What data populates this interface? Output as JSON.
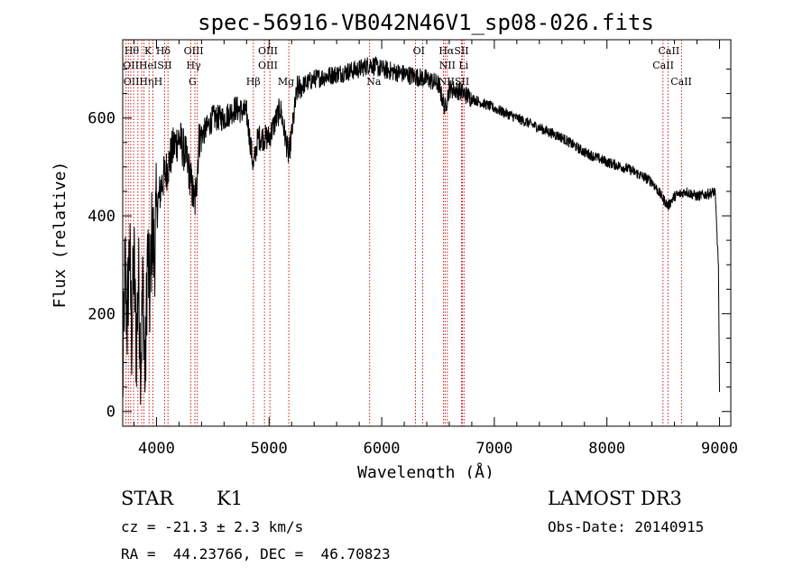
{
  "chart_data": {
    "type": "line",
    "title": "spec-56916-VB042N46V1_sp08-026.fits",
    "xlabel": "Wavelength (Å)",
    "ylabel": "Flux (relative)",
    "xlim": [
      3700,
      9100
    ],
    "ylim": [
      -30,
      760
    ],
    "xticks": [
      4000,
      5000,
      6000,
      7000,
      8000,
      9000
    ],
    "yticks": [
      0,
      200,
      400,
      600
    ],
    "series": [
      {
        "name": "flux",
        "x": [
          3700,
          3720,
          3740,
          3760,
          3780,
          3800,
          3820,
          3840,
          3860,
          3880,
          3900,
          3920,
          3940,
          3960,
          3980,
          4000,
          4050,
          4100,
          4150,
          4200,
          4250,
          4300,
          4340,
          4380,
          4450,
          4500,
          4600,
          4700,
          4800,
          4861,
          4900,
          5000,
          5100,
          5175,
          5250,
          5400,
          5600,
          5800,
          5900,
          6000,
          6100,
          6200,
          6300,
          6400,
          6500,
          6563,
          6600,
          6700,
          6800,
          6900,
          7000,
          7200,
          7400,
          7600,
          7800,
          8000,
          8200,
          8400,
          8542,
          8600,
          8700,
          8800,
          8900,
          8960,
          8990,
          9000
        ],
        "y": [
          40,
          300,
          180,
          340,
          150,
          320,
          120,
          280,
          100,
          260,
          60,
          330,
          230,
          370,
          320,
          410,
          470,
          500,
          540,
          560,
          530,
          480,
          420,
          560,
          580,
          600,
          600,
          620,
          610,
          500,
          560,
          560,
          620,
          520,
          660,
          680,
          690,
          700,
          710,
          700,
          695,
          690,
          685,
          680,
          670,
          620,
          660,
          655,
          640,
          630,
          620,
          600,
          580,
          560,
          530,
          510,
          495,
          470,
          420,
          440,
          450,
          440,
          445,
          450,
          300,
          40
        ]
      }
    ],
    "lines": [
      {
        "wavelength": 3730,
        "label": "OII"
      },
      {
        "wavelength": 3750,
        "label": "OII"
      },
      {
        "wavelength": 3771,
        "label": "Hθ"
      },
      {
        "wavelength": 3797,
        "label": "Hθ"
      },
      {
        "wavelength": 3835,
        "label": "Hη"
      },
      {
        "wavelength": 3869,
        "label": "NeIII"
      },
      {
        "wavelength": 3889,
        "label": "HeI"
      },
      {
        "wavelength": 3934,
        "label": "K"
      },
      {
        "wavelength": 3969,
        "label": "H"
      },
      {
        "wavelength": 4072,
        "label": "SII"
      },
      {
        "wavelength": 4102,
        "label": "Hδ"
      },
      {
        "wavelength": 4304,
        "label": "G"
      },
      {
        "wavelength": 4341,
        "label": "Hγ"
      },
      {
        "wavelength": 4363,
        "label": "OIII"
      },
      {
        "wavelength": 4861,
        "label": "Hβ"
      },
      {
        "wavelength": 4959,
        "label": "OIII"
      },
      {
        "wavelength": 5007,
        "label": "OIII"
      },
      {
        "wavelength": 5175,
        "label": "Mg"
      },
      {
        "wavelength": 5893,
        "label": "Na"
      },
      {
        "wavelength": 6300,
        "label": "OI"
      },
      {
        "wavelength": 6364,
        "label": "OI"
      },
      {
        "wavelength": 6548,
        "label": "NII"
      },
      {
        "wavelength": 6563,
        "label": "Hα"
      },
      {
        "wavelength": 6583,
        "label": "NII"
      },
      {
        "wavelength": 6708,
        "label": "Li"
      },
      {
        "wavelength": 6717,
        "label": "SII"
      },
      {
        "wavelength": 6731,
        "label": "SII"
      },
      {
        "wavelength": 8498,
        "label": "CaII"
      },
      {
        "wavelength": 8542,
        "label": "CaII"
      },
      {
        "wavelength": 8662,
        "label": "CaII"
      }
    ],
    "line_labels": [
      {
        "text": "Hθ",
        "row": 1,
        "wavelength": 3780
      },
      {
        "text": "K",
        "row": 1,
        "wavelength": 3925
      },
      {
        "text": "Hδ",
        "row": 1,
        "wavelength": 4060
      },
      {
        "text": "OIII",
        "row": 1,
        "wavelength": 4330
      },
      {
        "text": "OIII",
        "row": 1,
        "wavelength": 4990
      },
      {
        "text": "OI",
        "row": 1,
        "wavelength": 6330
      },
      {
        "text": "HαSII",
        "row": 1,
        "wavelength": 6640
      },
      {
        "text": "CaII",
        "row": 1,
        "wavelength": 8550
      },
      {
        "text": "OIIHeISII",
        "row": 2,
        "wavelength": 3920
      },
      {
        "text": "Hγ",
        "row": 2,
        "wavelength": 4330
      },
      {
        "text": "OIII",
        "row": 2,
        "wavelength": 4990
      },
      {
        "text": "NII Li",
        "row": 2,
        "wavelength": 6640
      },
      {
        "text": "CaII",
        "row": 2,
        "wavelength": 8500
      },
      {
        "text": "OIIHηH",
        "row": 3,
        "wavelength": 3880
      },
      {
        "text": "G",
        "row": 3,
        "wavelength": 4320
      },
      {
        "text": "Hβ",
        "row": 3,
        "wavelength": 4860
      },
      {
        "text": "Mg",
        "row": 3,
        "wavelength": 5150
      },
      {
        "text": "Na",
        "row": 3,
        "wavelength": 5930
      },
      {
        "text": "OI",
        "row": 3,
        "wavelength": 6380
      },
      {
        "text": "NIISII",
        "row": 3,
        "wavelength": 6640
      },
      {
        "text": "CaII",
        "row": 3,
        "wavelength": 8660
      }
    ],
    "line_color": "#c00000",
    "spectrum_color": "#000000"
  },
  "info": {
    "object_class": "STAR",
    "subclass": "K1",
    "survey": "LAMOST DR3",
    "redshift": "cz = -21.3 ± 2.3 km/s",
    "obs_date": "Obs-Date: 20140915",
    "coords": "RA =  44.23766, DEC =  46.70823"
  }
}
